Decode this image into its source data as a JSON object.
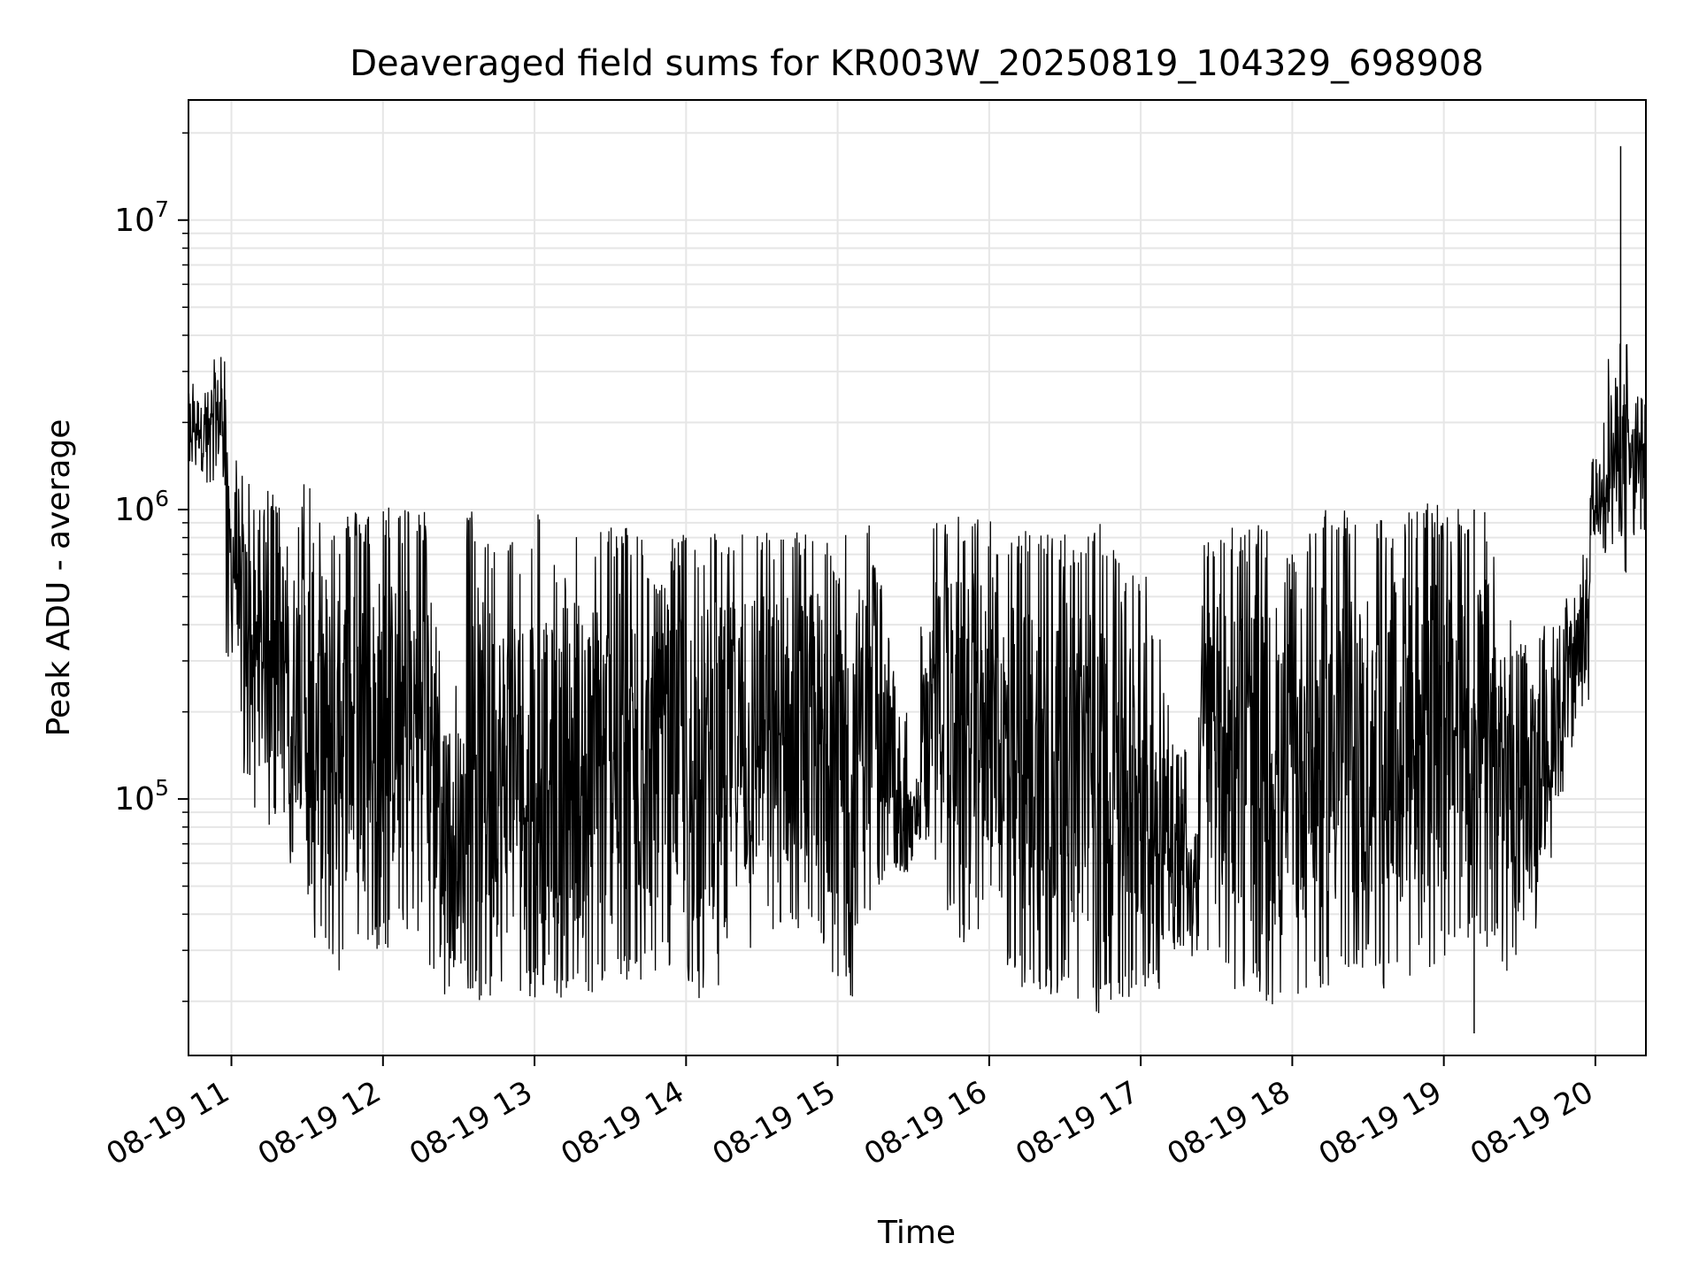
{
  "chart_data": {
    "type": "line",
    "title": "Deaveraged field sums for KR003W_20250819_104329_698908",
    "xlabel": "Time",
    "ylabel": "Peak ADU - average",
    "y_scale": "log",
    "ylim": [
      13000,
      26000000
    ],
    "xlim": [
      "2025-08-19 10:43",
      "2025-08-19 20:20"
    ],
    "grid": true,
    "line_color": "#000000",
    "grid_color": "#e6e6e6",
    "x_ticks": [
      {
        "time": "2025-08-19 11:00",
        "label": "08-19 11"
      },
      {
        "time": "2025-08-19 12:00",
        "label": "08-19 12"
      },
      {
        "time": "2025-08-19 13:00",
        "label": "08-19 13"
      },
      {
        "time": "2025-08-19 14:00",
        "label": "08-19 14"
      },
      {
        "time": "2025-08-19 15:00",
        "label": "08-19 15"
      },
      {
        "time": "2025-08-19 16:00",
        "label": "08-19 16"
      },
      {
        "time": "2025-08-19 17:00",
        "label": "08-19 17"
      },
      {
        "time": "2025-08-19 18:00",
        "label": "08-19 18"
      },
      {
        "time": "2025-08-19 19:00",
        "label": "08-19 19"
      },
      {
        "time": "2025-08-19 20:00",
        "label": "08-19 20"
      }
    ],
    "y_ticks": [
      {
        "value": 100000,
        "base": "10",
        "exp": "5"
      },
      {
        "value": 1000000,
        "base": "10",
        "exp": "6"
      },
      {
        "value": 10000000,
        "base": "10",
        "exp": "7"
      }
    ],
    "series": [
      {
        "x": [
          "2025-08-19 10:43",
          "2025-08-19 10:48",
          "2025-08-19 10:53",
          "2025-08-19 10:58",
          "2025-08-19 11:03",
          "2025-08-19 11:08",
          "2025-08-19 11:13",
          "2025-08-19 11:18",
          "2025-08-19 11:23",
          "2025-08-19 11:28",
          "2025-08-19 11:33",
          "2025-08-19 11:38",
          "2025-08-19 11:43",
          "2025-08-19 11:48",
          "2025-08-19 11:53",
          "2025-08-19 11:58",
          "2025-08-19 12:03",
          "2025-08-19 12:08",
          "2025-08-19 12:13",
          "2025-08-19 12:18",
          "2025-08-19 12:23",
          "2025-08-19 12:28",
          "2025-08-19 12:33",
          "2025-08-19 12:38",
          "2025-08-19 12:43",
          "2025-08-19 12:48",
          "2025-08-19 12:53",
          "2025-08-19 12:58",
          "2025-08-19 13:03",
          "2025-08-19 13:08",
          "2025-08-19 13:13",
          "2025-08-19 13:18",
          "2025-08-19 13:23",
          "2025-08-19 13:28",
          "2025-08-19 13:33",
          "2025-08-19 13:38",
          "2025-08-19 13:43",
          "2025-08-19 13:48",
          "2025-08-19 13:53",
          "2025-08-19 13:58",
          "2025-08-19 14:03",
          "2025-08-19 14:08",
          "2025-08-19 14:13",
          "2025-08-19 14:18",
          "2025-08-19 14:23",
          "2025-08-19 14:28",
          "2025-08-19 14:33",
          "2025-08-19 14:38",
          "2025-08-19 14:43",
          "2025-08-19 14:48",
          "2025-08-19 14:53",
          "2025-08-19 14:58",
          "2025-08-19 15:03",
          "2025-08-19 15:08",
          "2025-08-19 15:13",
          "2025-08-19 15:18",
          "2025-08-19 15:23",
          "2025-08-19 15:28",
          "2025-08-19 15:33",
          "2025-08-19 15:38",
          "2025-08-19 15:43",
          "2025-08-19 15:48",
          "2025-08-19 15:53",
          "2025-08-19 15:58",
          "2025-08-19 16:03",
          "2025-08-19 16:08",
          "2025-08-19 16:13",
          "2025-08-19 16:18",
          "2025-08-19 16:23",
          "2025-08-19 16:28",
          "2025-08-19 16:33",
          "2025-08-19 16:38",
          "2025-08-19 16:43",
          "2025-08-19 16:48",
          "2025-08-19 16:53",
          "2025-08-19 16:58",
          "2025-08-19 17:03",
          "2025-08-19 17:08",
          "2025-08-19 17:13",
          "2025-08-19 17:18",
          "2025-08-19 17:23",
          "2025-08-19 17:28",
          "2025-08-19 17:33",
          "2025-08-19 17:38",
          "2025-08-19 17:43",
          "2025-08-19 17:48",
          "2025-08-19 17:53",
          "2025-08-19 17:58",
          "2025-08-19 18:03",
          "2025-08-19 18:08",
          "2025-08-19 18:13",
          "2025-08-19 18:18",
          "2025-08-19 18:23",
          "2025-08-19 18:28",
          "2025-08-19 18:33",
          "2025-08-19 18:38",
          "2025-08-19 18:43",
          "2025-08-19 18:48",
          "2025-08-19 18:53",
          "2025-08-19 18:58",
          "2025-08-19 19:03",
          "2025-08-19 19:08",
          "2025-08-19 19:13",
          "2025-08-19 19:18",
          "2025-08-19 19:23",
          "2025-08-19 19:28",
          "2025-08-19 19:33",
          "2025-08-19 19:38",
          "2025-08-19 19:43",
          "2025-08-19 19:48",
          "2025-08-19 19:53",
          "2025-08-19 19:58",
          "2025-08-19 20:03",
          "2025-08-19 20:08",
          "2025-08-19 20:13",
          "2025-08-19 20:18"
        ],
        "high": [
          2800000,
          2600000,
          3500000,
          1600000,
          1400000,
          1000000,
          1200000,
          1200000,
          1000000,
          1300000,
          1100000,
          900000,
          1000000,
          1000000,
          1000000,
          1050000,
          1000000,
          1100000,
          1000000,
          950000,
          180000,
          250000,
          1000000,
          850000,
          800000,
          900000,
          800000,
          1000000,
          700000,
          600000,
          1000000,
          400000,
          900000,
          900000,
          900000,
          900000,
          600000,
          600000,
          800000,
          850000,
          850000,
          850000,
          800000,
          850000,
          500000,
          850000,
          850000,
          900000,
          850000,
          900000,
          900000,
          650000,
          900000,
          900000,
          650000,
          400000,
          200000,
          120000,
          400000,
          1000000,
          950000,
          950000,
          1000000,
          950000,
          850000,
          850000,
          850000,
          850000,
          850000,
          850000,
          850000,
          900000,
          900000,
          850000,
          650000,
          600000,
          400000,
          250000,
          150000,
          80000,
          900000,
          900000,
          900000,
          850000,
          900000,
          850000,
          600000,
          700000,
          900000,
          950000,
          1000000,
          1000000,
          900000,
          600000,
          1000000,
          1000000,
          1100000,
          1000000,
          1050000,
          1000000,
          1100000,
          1000000,
          1000000,
          900000,
          500000,
          350000,
          250000,
          400000,
          400000,
          500000,
          700000,
          1500000,
          3500000,
          3800000,
          2500000,
          2500000
        ],
        "low": [
          1400000,
          1200000,
          1200000,
          300000,
          120000,
          90000,
          80000,
          80000,
          60000,
          40000,
          30000,
          25000,
          30000,
          28000,
          30000,
          30000,
          32000,
          32000,
          35000,
          25000,
          20000,
          25000,
          22000,
          20000,
          19000,
          18000,
          20000,
          20000,
          22000,
          20000,
          19000,
          20000,
          22000,
          20000,
          22000,
          23000,
          25000,
          28000,
          25000,
          20000,
          20000,
          22000,
          30000,
          30000,
          30000,
          35000,
          30000,
          33000,
          30000,
          32000,
          28000,
          22000,
          20000,
          40000,
          50000,
          55000,
          55000,
          60000,
          70000,
          60000,
          40000,
          30000,
          35000,
          40000,
          25000,
          22000,
          22000,
          20000,
          20000,
          22000,
          19000,
          18000,
          17000,
          20000,
          20000,
          22000,
          22000,
          30000,
          30000,
          28000,
          25000,
          25000,
          22000,
          22000,
          20000,
          18000,
          17000,
          20000,
          22000,
          22000,
          22000,
          25000,
          25000,
          25000,
          22000,
          22000,
          22000,
          25000,
          25000,
          28000,
          30000,
          30000,
          30000,
          30000,
          25000,
          25000,
          35000,
          60000,
          100000,
          150000,
          200000,
          800000,
          700000,
          600000,
          800000,
          800000
        ],
        "spikes": [
          {
            "x": "2025-08-19 20:10",
            "value": 18000000
          },
          {
            "x": "2025-08-19 19:12",
            "value": 15500
          }
        ]
      }
    ]
  }
}
